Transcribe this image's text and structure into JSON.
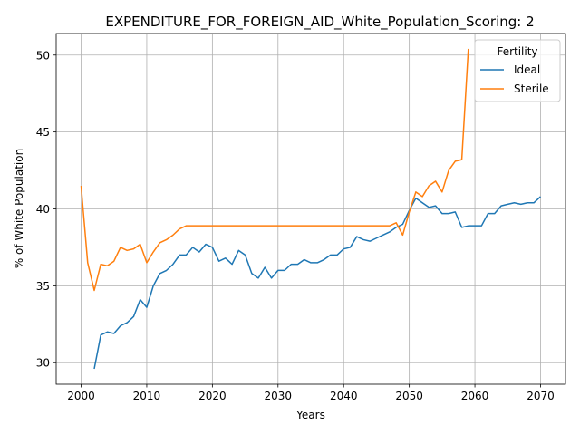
{
  "chart_data": {
    "type": "line",
    "title": "EXPENDITURE_FOR_FOREIGN_AID_White_Population_Scoring: 2",
    "xlabel": "Years",
    "ylabel": "% of White Population",
    "xlim": [
      1996.2,
      2073.8
    ],
    "ylim": [
      28.6,
      51.4
    ],
    "xticks": [
      2000,
      2010,
      2020,
      2030,
      2040,
      2050,
      2060,
      2070
    ],
    "yticks": [
      30,
      35,
      40,
      45,
      50
    ],
    "grid": true,
    "legend": {
      "title": "Fertility",
      "placement": "top-right"
    },
    "series": [
      {
        "name": "Ideal",
        "color": "#1f77b4",
        "x": [
          2002,
          2003,
          2004,
          2005,
          2006,
          2007,
          2008,
          2009,
          2010,
          2011,
          2012,
          2013,
          2014,
          2015,
          2016,
          2017,
          2018,
          2019,
          2020,
          2021,
          2022,
          2023,
          2024,
          2025,
          2026,
          2027,
          2028,
          2029,
          2030,
          2031,
          2032,
          2033,
          2034,
          2035,
          2036,
          2037,
          2038,
          2039,
          2040,
          2041,
          2042,
          2043,
          2044,
          2045,
          2046,
          2047,
          2048,
          2049,
          2050,
          2051,
          2052,
          2053,
          2054,
          2055,
          2056,
          2057,
          2058,
          2059,
          2060,
          2061,
          2062,
          2063,
          2064,
          2065,
          2066,
          2067,
          2068,
          2069,
          2070
        ],
        "y": [
          29.6,
          31.8,
          32.0,
          31.9,
          32.4,
          32.6,
          33.0,
          34.1,
          33.6,
          35.0,
          35.8,
          36.0,
          36.4,
          37.0,
          37.0,
          37.5,
          37.2,
          37.7,
          37.5,
          36.6,
          36.8,
          36.4,
          37.3,
          37.0,
          35.8,
          35.5,
          36.2,
          35.5,
          36.0,
          36.0,
          36.4,
          36.4,
          36.7,
          36.5,
          36.5,
          36.7,
          37.0,
          37.0,
          37.4,
          37.5,
          38.2,
          38.0,
          37.9,
          38.1,
          38.3,
          38.5,
          38.8,
          39.0,
          39.9,
          40.7,
          40.4,
          40.1,
          40.2,
          39.7,
          39.7,
          39.8,
          38.8,
          38.9,
          38.9,
          38.9,
          39.7,
          39.7,
          40.2,
          40.3,
          40.4,
          40.3,
          40.4,
          40.4,
          40.8
        ]
      },
      {
        "name": "Sterile",
        "color": "#ff7f0e",
        "x": [
          2000,
          2001,
          2002,
          2003,
          2004,
          2005,
          2006,
          2007,
          2008,
          2009,
          2010,
          2011,
          2012,
          2013,
          2014,
          2015,
          2016,
          2017,
          2018,
          2019,
          2020,
          2021,
          2022,
          2023,
          2024,
          2025,
          2026,
          2027,
          2028,
          2029,
          2030,
          2031,
          2032,
          2033,
          2034,
          2035,
          2036,
          2037,
          2038,
          2039,
          2040,
          2041,
          2042,
          2043,
          2044,
          2045,
          2046,
          2047,
          2048,
          2049,
          2050,
          2051,
          2052,
          2053,
          2054,
          2055,
          2056,
          2057,
          2058,
          2059
        ],
        "y": [
          41.5,
          36.5,
          34.7,
          36.4,
          36.3,
          36.6,
          37.5,
          37.3,
          37.4,
          37.7,
          36.5,
          37.2,
          37.8,
          38.0,
          38.3,
          38.7,
          38.9,
          38.9,
          38.9,
          38.9,
          38.9,
          38.9,
          38.9,
          38.9,
          38.9,
          38.9,
          38.9,
          38.9,
          38.9,
          38.9,
          38.9,
          38.9,
          38.9,
          38.9,
          38.9,
          38.9,
          38.9,
          38.9,
          38.9,
          38.9,
          38.9,
          38.9,
          38.9,
          38.9,
          38.9,
          38.9,
          38.9,
          38.9,
          39.1,
          38.3,
          39.8,
          41.1,
          40.8,
          41.5,
          41.8,
          41.1,
          42.5,
          43.1,
          43.2,
          50.4
        ]
      }
    ]
  }
}
